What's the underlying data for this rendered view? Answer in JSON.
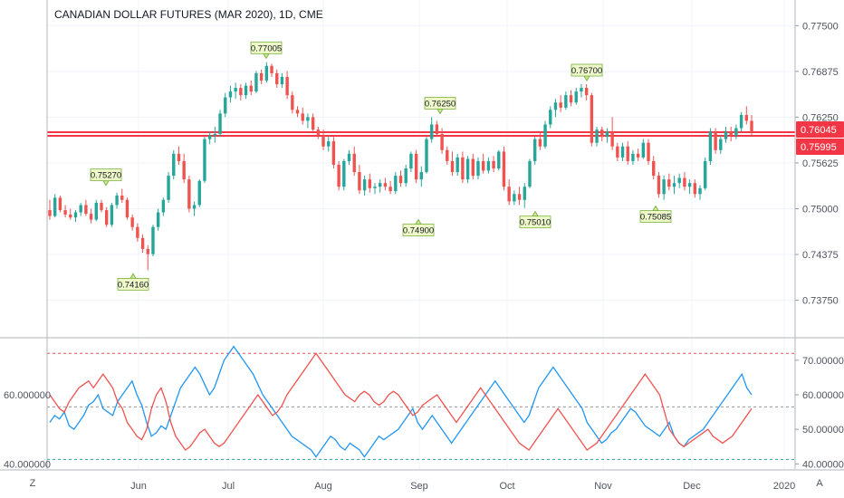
{
  "chart_data": {
    "type": "candlestick",
    "title": "CANADIAN DOLLAR FUTURES (MAR 2020), 1D, CME",
    "price_axis": {
      "ylim": [
        0.7325,
        0.7785
      ],
      "ticks": [
        "0.77500",
        "0.76875",
        "0.76250",
        "0.75625",
        "0.75000",
        "0.74375",
        "0.73750"
      ],
      "tick_values": [
        0.775,
        0.76875,
        0.7625,
        0.75625,
        0.75,
        0.74375,
        0.7375
      ]
    },
    "price_tags": [
      {
        "label": "0.76045",
        "value": 0.76045
      },
      {
        "label": "0.75995",
        "value": 0.75995
      }
    ],
    "horizontal_lines": [
      0.76045,
      0.75995
    ],
    "x_axis": {
      "labels": [
        "Jun",
        "Jul",
        "Aug",
        "Sep",
        "Oct",
        "Nov",
        "Dec",
        "2020"
      ],
      "label_positions": [
        0,
        1,
        2,
        3,
        4,
        5,
        6,
        7
      ]
    },
    "annotations": [
      {
        "label": "0.77005",
        "value": 0.77005,
        "date": "Jul 15",
        "position": "above"
      },
      {
        "label": "0.76700",
        "value": 0.767,
        "date": "Oct 25",
        "position": "above"
      },
      {
        "label": "0.76250",
        "value": 0.7625,
        "date": "Sep 5",
        "position": "above"
      },
      {
        "label": "0.75270",
        "value": 0.7527,
        "date": "May 27",
        "position": "above"
      },
      {
        "label": "0.74900",
        "value": 0.749,
        "date": "Sep 1",
        "position": "below"
      },
      {
        "label": "0.75010",
        "value": 0.7501,
        "date": "Oct 5",
        "position": "below"
      },
      {
        "label": "0.75085",
        "value": 0.75085,
        "date": "Nov 26",
        "position": "below"
      },
      {
        "label": "0.74160",
        "value": 0.7416,
        "date": "May 30",
        "position": "below"
      }
    ],
    "candles": [
      [
        0.7498,
        0.7512,
        0.7485,
        0.749
      ],
      [
        0.749,
        0.752,
        0.7488,
        0.7515
      ],
      [
        0.7515,
        0.7518,
        0.7495,
        0.7498
      ],
      [
        0.7498,
        0.7505,
        0.7488,
        0.7492
      ],
      [
        0.7492,
        0.75,
        0.7485,
        0.7488
      ],
      [
        0.7488,
        0.7498,
        0.7482,
        0.7495
      ],
      [
        0.7495,
        0.7508,
        0.749,
        0.7505
      ],
      [
        0.7505,
        0.7512,
        0.749,
        0.7493
      ],
      [
        0.7493,
        0.75,
        0.748,
        0.7485
      ],
      [
        0.7485,
        0.7512,
        0.7483,
        0.7508
      ],
      [
        0.7508,
        0.7512,
        0.7495,
        0.7498
      ],
      [
        0.7498,
        0.7502,
        0.7475,
        0.7478
      ],
      [
        0.7478,
        0.7508,
        0.7475,
        0.7505
      ],
      [
        0.7505,
        0.7522,
        0.75,
        0.7518
      ],
      [
        0.7518,
        0.7527,
        0.7508,
        0.7512
      ],
      [
        0.7512,
        0.7515,
        0.7485,
        0.7488
      ],
      [
        0.7488,
        0.7492,
        0.747,
        0.7475
      ],
      [
        0.7475,
        0.748,
        0.7455,
        0.746
      ],
      [
        0.746,
        0.7465,
        0.744,
        0.7445
      ],
      [
        0.7445,
        0.745,
        0.7416,
        0.7438
      ],
      [
        0.7438,
        0.7478,
        0.7435,
        0.7475
      ],
      [
        0.7475,
        0.75,
        0.747,
        0.7495
      ],
      [
        0.7495,
        0.7515,
        0.749,
        0.7512
      ],
      [
        0.7512,
        0.755,
        0.7508,
        0.7545
      ],
      [
        0.7545,
        0.758,
        0.754,
        0.7575
      ],
      [
        0.7575,
        0.7585,
        0.756,
        0.7565
      ],
      [
        0.7565,
        0.7575,
        0.7535,
        0.754
      ],
      [
        0.754,
        0.7545,
        0.7495,
        0.75
      ],
      [
        0.75,
        0.751,
        0.749,
        0.7505
      ],
      [
        0.7505,
        0.754,
        0.7502,
        0.7538
      ],
      [
        0.7538,
        0.7598,
        0.7535,
        0.7595
      ],
      [
        0.7595,
        0.7605,
        0.7588,
        0.76
      ],
      [
        0.76,
        0.7612,
        0.759,
        0.7602
      ],
      [
        0.7602,
        0.7635,
        0.7598,
        0.763
      ],
      [
        0.763,
        0.7658,
        0.7625,
        0.7652
      ],
      [
        0.7652,
        0.7668,
        0.7645,
        0.766
      ],
      [
        0.766,
        0.7672,
        0.765,
        0.7665
      ],
      [
        0.7665,
        0.767,
        0.7648,
        0.7655
      ],
      [
        0.7655,
        0.7672,
        0.765,
        0.7668
      ],
      [
        0.7668,
        0.7675,
        0.7655,
        0.766
      ],
      [
        0.766,
        0.7688,
        0.7658,
        0.7685
      ],
      [
        0.7685,
        0.769,
        0.767,
        0.7675
      ],
      [
        0.7675,
        0.77,
        0.7672,
        0.7695
      ],
      [
        0.7695,
        0.7698,
        0.768,
        0.7685
      ],
      [
        0.7685,
        0.769,
        0.7665,
        0.767
      ],
      [
        0.767,
        0.7685,
        0.7665,
        0.768
      ],
      [
        0.768,
        0.7688,
        0.765,
        0.7655
      ],
      [
        0.7655,
        0.766,
        0.763,
        0.7635
      ],
      [
        0.7635,
        0.764,
        0.7625,
        0.763
      ],
      [
        0.763,
        0.7638,
        0.7615,
        0.762
      ],
      [
        0.762,
        0.763,
        0.761,
        0.7625
      ],
      [
        0.7625,
        0.763,
        0.7605,
        0.7608
      ],
      [
        0.7608,
        0.7612,
        0.7595,
        0.76
      ],
      [
        0.76,
        0.7608,
        0.758,
        0.7585
      ],
      [
        0.7585,
        0.7598,
        0.7578,
        0.7592
      ],
      [
        0.7592,
        0.7598,
        0.7555,
        0.756
      ],
      [
        0.756,
        0.7565,
        0.7525,
        0.753
      ],
      [
        0.753,
        0.7568,
        0.7525,
        0.7565
      ],
      [
        0.7565,
        0.758,
        0.756,
        0.7575
      ],
      [
        0.7575,
        0.7585,
        0.7545,
        0.755
      ],
      [
        0.755,
        0.756,
        0.752,
        0.7525
      ],
      [
        0.7525,
        0.7545,
        0.7518,
        0.754
      ],
      [
        0.754,
        0.7548,
        0.7522,
        0.7528
      ],
      [
        0.7528,
        0.7535,
        0.752,
        0.753
      ],
      [
        0.753,
        0.754,
        0.7522,
        0.7535
      ],
      [
        0.7535,
        0.7542,
        0.7525,
        0.753
      ],
      [
        0.753,
        0.7538,
        0.752,
        0.7524
      ],
      [
        0.7524,
        0.755,
        0.752,
        0.7545
      ],
      [
        0.7545,
        0.7552,
        0.753,
        0.7535
      ],
      [
        0.7535,
        0.756,
        0.753,
        0.7555
      ],
      [
        0.7555,
        0.7578,
        0.755,
        0.7575
      ],
      [
        0.7575,
        0.758,
        0.7535,
        0.754
      ],
      [
        0.754,
        0.7558,
        0.753,
        0.755
      ],
      [
        0.755,
        0.7598,
        0.7548,
        0.7595
      ],
      [
        0.7595,
        0.7625,
        0.759,
        0.7615
      ],
      [
        0.7615,
        0.762,
        0.7598,
        0.7602
      ],
      [
        0.7602,
        0.761,
        0.7575,
        0.758
      ],
      [
        0.758,
        0.7585,
        0.756,
        0.7565
      ],
      [
        0.7565,
        0.7578,
        0.7545,
        0.755
      ],
      [
        0.755,
        0.7575,
        0.7545,
        0.757
      ],
      [
        0.757,
        0.7578,
        0.7535,
        0.754
      ],
      [
        0.754,
        0.7572,
        0.7535,
        0.7568
      ],
      [
        0.7568,
        0.7575,
        0.754,
        0.7545
      ],
      [
        0.7545,
        0.757,
        0.754,
        0.7565
      ],
      [
        0.7565,
        0.7575,
        0.7548,
        0.7552
      ],
      [
        0.7552,
        0.757,
        0.7548,
        0.7565
      ],
      [
        0.7565,
        0.7572,
        0.755,
        0.7555
      ],
      [
        0.7555,
        0.758,
        0.7552,
        0.7578
      ],
      [
        0.7578,
        0.7585,
        0.7525,
        0.753
      ],
      [
        0.753,
        0.754,
        0.7505,
        0.751
      ],
      [
        0.751,
        0.7525,
        0.7505,
        0.752
      ],
      [
        0.752,
        0.753,
        0.7505,
        0.7512
      ],
      [
        0.7512,
        0.7535,
        0.7501,
        0.753
      ],
      [
        0.753,
        0.7568,
        0.7528,
        0.7565
      ],
      [
        0.7565,
        0.7598,
        0.756,
        0.7595
      ],
      [
        0.7595,
        0.7605,
        0.758,
        0.7585
      ],
      [
        0.7585,
        0.762,
        0.7582,
        0.7615
      ],
      [
        0.7615,
        0.764,
        0.761,
        0.7635
      ],
      [
        0.7635,
        0.765,
        0.7625,
        0.7645
      ],
      [
        0.7645,
        0.7655,
        0.7632,
        0.7638
      ],
      [
        0.7638,
        0.766,
        0.7635,
        0.7655
      ],
      [
        0.7655,
        0.7662,
        0.764,
        0.7645
      ],
      [
        0.7645,
        0.7665,
        0.7642,
        0.766
      ],
      [
        0.766,
        0.767,
        0.7652,
        0.7665
      ],
      [
        0.7665,
        0.767,
        0.7648,
        0.7655
      ],
      [
        0.7655,
        0.7658,
        0.7585,
        0.759
      ],
      [
        0.759,
        0.7612,
        0.7585,
        0.7608
      ],
      [
        0.7608,
        0.7612,
        0.7592,
        0.7598
      ],
      [
        0.7598,
        0.761,
        0.759,
        0.7605
      ],
      [
        0.7605,
        0.7625,
        0.758,
        0.7585
      ],
      [
        0.7585,
        0.759,
        0.7565,
        0.757
      ],
      [
        0.757,
        0.759,
        0.7565,
        0.7585
      ],
      [
        0.7585,
        0.7592,
        0.756,
        0.7565
      ],
      [
        0.7565,
        0.758,
        0.756,
        0.7575
      ],
      [
        0.7575,
        0.7582,
        0.7565,
        0.757
      ],
      [
        0.757,
        0.7595,
        0.7568,
        0.759
      ],
      [
        0.759,
        0.7595,
        0.756,
        0.7565
      ],
      [
        0.7565,
        0.7572,
        0.754,
        0.7545
      ],
      [
        0.7545,
        0.755,
        0.7515,
        0.752
      ],
      [
        0.752,
        0.7545,
        0.7512,
        0.754
      ],
      [
        0.754,
        0.7548,
        0.7525,
        0.753
      ],
      [
        0.753,
        0.7545,
        0.752,
        0.7535
      ],
      [
        0.7535,
        0.7548,
        0.7528,
        0.7542
      ],
      [
        0.7542,
        0.755,
        0.7525,
        0.753
      ],
      [
        0.753,
        0.754,
        0.752,
        0.7535
      ],
      [
        0.7535,
        0.754,
        0.7515,
        0.752
      ],
      [
        0.752,
        0.7532,
        0.7512,
        0.7528
      ],
      [
        0.7528,
        0.757,
        0.7525,
        0.7565
      ],
      [
        0.7565,
        0.761,
        0.756,
        0.7605
      ],
      [
        0.7605,
        0.761,
        0.7575,
        0.758
      ],
      [
        0.758,
        0.76,
        0.7575,
        0.7595
      ],
      [
        0.7595,
        0.7612,
        0.759,
        0.7605
      ],
      [
        0.7605,
        0.7612,
        0.7592,
        0.76
      ],
      [
        0.76,
        0.7615,
        0.7595,
        0.761
      ],
      [
        0.761,
        0.7632,
        0.7605,
        0.7628
      ],
      [
        0.7628,
        0.764,
        0.7615,
        0.762
      ],
      [
        0.762,
        0.7628,
        0.76,
        0.7605
      ]
    ],
    "oscillator": {
      "ylim": [
        38.5,
        76
      ],
      "left_ticks": [
        "60.000000",
        "40.000000"
      ],
      "left_tick_values": [
        60,
        40
      ],
      "right_ticks": [
        "70.00000",
        "60.00000",
        "50.00000",
        "40.00000"
      ],
      "right_tick_values": [
        70,
        60,
        50,
        40
      ],
      "reference_lines": [
        {
          "value": 72.0,
          "color": "#ef5350"
        },
        {
          "value": 56.5,
          "color": "#9598a1"
        },
        {
          "value": 41.3,
          "color": "#26a69a"
        }
      ],
      "series": [
        {
          "color": "#2196f3",
          "values": [
            52,
            54,
            53,
            55,
            51,
            50,
            52,
            54,
            57,
            58,
            60,
            56,
            55,
            54,
            58,
            60,
            62,
            64,
            60,
            57,
            52,
            48,
            49,
            51,
            50,
            54,
            58,
            62,
            64,
            66,
            68,
            66,
            63,
            60,
            62,
            66,
            70,
            72,
            74,
            72,
            70,
            68,
            66,
            63,
            60,
            58,
            56,
            54,
            52,
            50,
            48,
            47,
            46,
            45,
            44,
            42,
            44,
            46,
            48,
            47,
            45,
            44,
            46,
            45,
            44,
            42,
            44,
            46,
            48,
            47,
            48,
            49,
            50,
            52,
            54,
            56,
            52,
            50,
            52,
            54,
            52,
            50,
            48,
            46,
            48,
            50,
            52,
            54,
            56,
            58,
            60,
            62,
            64,
            62,
            60,
            58,
            56,
            54,
            52,
            54,
            58,
            62,
            64,
            66,
            68,
            66,
            64,
            62,
            60,
            58,
            56,
            52,
            50,
            48,
            46,
            47,
            49,
            50,
            52,
            54,
            56,
            55,
            53,
            51,
            50,
            49,
            48,
            50,
            52,
            48,
            46,
            45,
            47,
            48,
            49,
            50,
            52,
            54,
            56,
            58,
            60,
            62,
            64,
            66,
            62,
            60
          ]
        },
        {
          "color": "#ef5350",
          "values": [
            60,
            58,
            56,
            55,
            58,
            60,
            62,
            63,
            64,
            62,
            64,
            66,
            64,
            62,
            58,
            56,
            52,
            50,
            48,
            47,
            50,
            56,
            60,
            62,
            58,
            52,
            48,
            46,
            44,
            45,
            47,
            49,
            50,
            48,
            46,
            45,
            46,
            48,
            50,
            52,
            54,
            56,
            58,
            60,
            58,
            56,
            54,
            55,
            57,
            60,
            62,
            64,
            66,
            68,
            70,
            72,
            70,
            68,
            66,
            64,
            62,
            60,
            59,
            58,
            60,
            61,
            60,
            58,
            57,
            58,
            60,
            61,
            60,
            58,
            56,
            54,
            55,
            57,
            58,
            59,
            60,
            58,
            56,
            54,
            52,
            54,
            56,
            58,
            60,
            62,
            60,
            58,
            56,
            54,
            52,
            50,
            48,
            46,
            45,
            44,
            46,
            48,
            50,
            52,
            54,
            56,
            54,
            52,
            50,
            48,
            46,
            44,
            45,
            46,
            48,
            50,
            52,
            54,
            56,
            58,
            60,
            62,
            64,
            66,
            64,
            62,
            60,
            55,
            50,
            48,
            46,
            45,
            46,
            47,
            48,
            49,
            50,
            48,
            47,
            46,
            47,
            48,
            50,
            52,
            54,
            56
          ]
        }
      ]
    }
  },
  "toolbar": {
    "left_button": "Z",
    "right_button": "A"
  }
}
